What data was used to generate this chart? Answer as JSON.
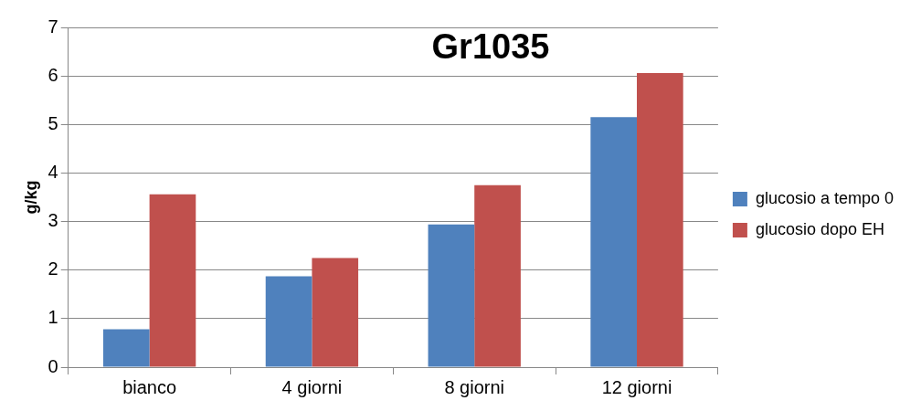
{
  "chart_data": {
    "type": "bar",
    "title": "Gr1035",
    "ylabel": "g/kg",
    "categories": [
      "bianco",
      "4 giorni",
      "8 giorni",
      "12 giorni"
    ],
    "series": [
      {
        "name": "glucosio a tempo 0",
        "color": "#4f81bd",
        "values": [
          0.78,
          1.87,
          2.94,
          5.15
        ]
      },
      {
        "name": "glucosio dopo EH",
        "color": "#c0504d",
        "values": [
          3.56,
          2.25,
          3.75,
          6.06
        ]
      }
    ],
    "ylim": [
      0,
      7
    ],
    "yticks": [
      0,
      1,
      2,
      3,
      4,
      5,
      6,
      7
    ],
    "grid": "y",
    "legend": "right"
  }
}
